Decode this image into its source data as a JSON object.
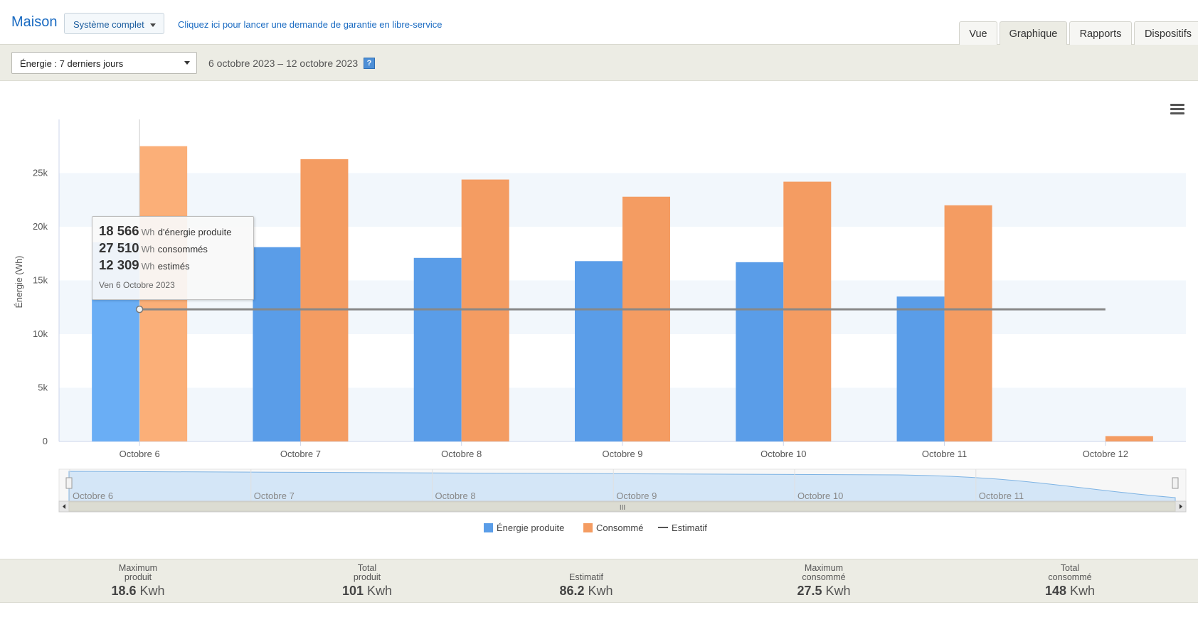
{
  "header": {
    "site_title": "Maison",
    "system_select_value": "Système complet",
    "warranty_link": "Cliquez ici pour lancer une demande de garantie en libre-service",
    "tabs": [
      {
        "label": "Vue",
        "active": false
      },
      {
        "label": "Graphique",
        "active": true
      },
      {
        "label": "Rapports",
        "active": false
      },
      {
        "label": "Dispositifs",
        "active": false
      }
    ]
  },
  "toolbar": {
    "period_select_value": "Énergie : 7 derniers jours",
    "date_range": "6 octobre 2023 – 12 octobre 2023",
    "help_icon": "?"
  },
  "chart_data": {
    "type": "bar",
    "categories": [
      "Octobre 6",
      "Octobre 7",
      "Octobre 8",
      "Octobre 9",
      "Octobre 10",
      "Octobre 11",
      "Octobre 12"
    ],
    "series": [
      {
        "name": "Énergie produite",
        "type": "bar",
        "color": "#5a9de8",
        "values": [
          18566,
          18100,
          17100,
          16800,
          16700,
          13500,
          0
        ]
      },
      {
        "name": "Consommé",
        "type": "bar",
        "color": "#f49c62",
        "values": [
          27510,
          26300,
          24400,
          22800,
          24200,
          22000,
          500
        ]
      },
      {
        "name": "Estimatif",
        "type": "line",
        "color": "#888888",
        "values": [
          12309,
          12309,
          12309,
          12309,
          12309,
          12309,
          12309
        ]
      }
    ],
    "ylabel": "Énergie (Wh)",
    "xlabel": "",
    "ylim": [
      0,
      30000
    ],
    "yticks": [
      0,
      5000,
      10000,
      15000,
      20000,
      25000
    ],
    "ytick_labels": [
      "0",
      "5k",
      "10k",
      "15k",
      "20k",
      "25k"
    ],
    "legend_position": "bottom-center",
    "highlighted_category": "Octobre 6",
    "navigator_labels": [
      "Octobre 6",
      "Octobre 7",
      "Octobre 8",
      "Octobre 9",
      "Octobre 10",
      "Octobre 11"
    ]
  },
  "tooltip": {
    "produced_value": "18 566",
    "produced_unit": "Wh",
    "produced_label": "d'énergie produite",
    "consumed_value": "27 510",
    "consumed_unit": "Wh",
    "consumed_label": "consommés",
    "estimated_value": "12 309",
    "estimated_unit": "Wh",
    "estimated_label": "estimés",
    "date": "Ven 6 Octobre 2023"
  },
  "legend": [
    {
      "label": "Énergie produite",
      "color": "#5a9de8"
    },
    {
      "label": "Consommé",
      "color": "#f49c62"
    },
    {
      "label": "Estimatif",
      "color": "#555555"
    }
  ],
  "stats": [
    {
      "label_line1": "Maximum",
      "label_line2": "produit",
      "value": "18.6",
      "unit": "Kwh"
    },
    {
      "label_line1": "Total",
      "label_line2": "produit",
      "value": "101",
      "unit": "Kwh"
    },
    {
      "label_line1": "",
      "label_line2": "Estimatif",
      "value": "86.2",
      "unit": "Kwh"
    },
    {
      "label_line1": "Maximum",
      "label_line2": "consommé",
      "value": "27.5",
      "unit": "Kwh"
    },
    {
      "label_line1": "Total",
      "label_line2": "consommé",
      "value": "148",
      "unit": "Kwh"
    }
  ]
}
